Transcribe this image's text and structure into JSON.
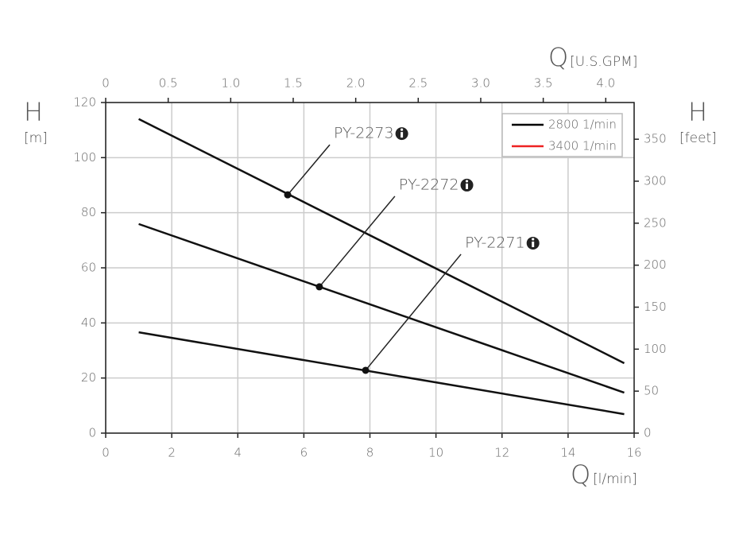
{
  "chart_data": {
    "type": "line",
    "x_label": {
      "symbol": "Q",
      "unit": "[l/min]"
    },
    "y_label": {
      "symbol": "H",
      "unit": "[m]"
    },
    "x2_label": {
      "symbol": "Q",
      "unit": "[U.S.GPM]"
    },
    "y2_label": {
      "symbol": "H",
      "unit": "[feet]"
    },
    "xlim": [
      0,
      16
    ],
    "xticks": [
      0,
      2,
      4,
      6,
      8,
      10,
      12,
      14,
      16
    ],
    "ylim": [
      0,
      120
    ],
    "yticks": [
      0,
      20,
      40,
      60,
      80,
      100,
      120
    ],
    "x2lim": [
      0,
      4.227
    ],
    "x2ticks": [
      0,
      0.5,
      {
        "value": 1,
        "label": "1.0"
      },
      1.5,
      {
        "value": 2,
        "label": "2.0"
      },
      2.5,
      {
        "value": 3,
        "label": "3.0"
      },
      3.5,
      {
        "value": 4,
        "label": "4.0"
      }
    ],
    "y2lim": [
      0,
      393.7
    ],
    "y2ticks": [
      0,
      50,
      100,
      150,
      200,
      250,
      300,
      350
    ],
    "grid": true,
    "series": [
      {
        "name": "PY-2273",
        "color": "#111111",
        "x": [
          1,
          15.7
        ],
        "values": [
          114,
          25.4
        ],
        "marker": {
          "x": 5.51,
          "y": 86.5
        }
      },
      {
        "name": "PY-2272",
        "color": "#111111",
        "x": [
          1,
          15.7
        ],
        "values": [
          75.9,
          14.7
        ],
        "marker": {
          "x": 6.47,
          "y": 53.1
        }
      },
      {
        "name": "PY-2271",
        "color": "#111111",
        "x": [
          1,
          15.7
        ],
        "values": [
          36.6,
          6.9
        ],
        "marker": {
          "x": 7.87,
          "y": 22.8
        }
      }
    ],
    "legend_position": "upper right",
    "legend": [
      {
        "name": "2800 1/min",
        "color": "#000000"
      },
      {
        "name": "3400 1/min",
        "color": "#ee2222"
      }
    ]
  }
}
